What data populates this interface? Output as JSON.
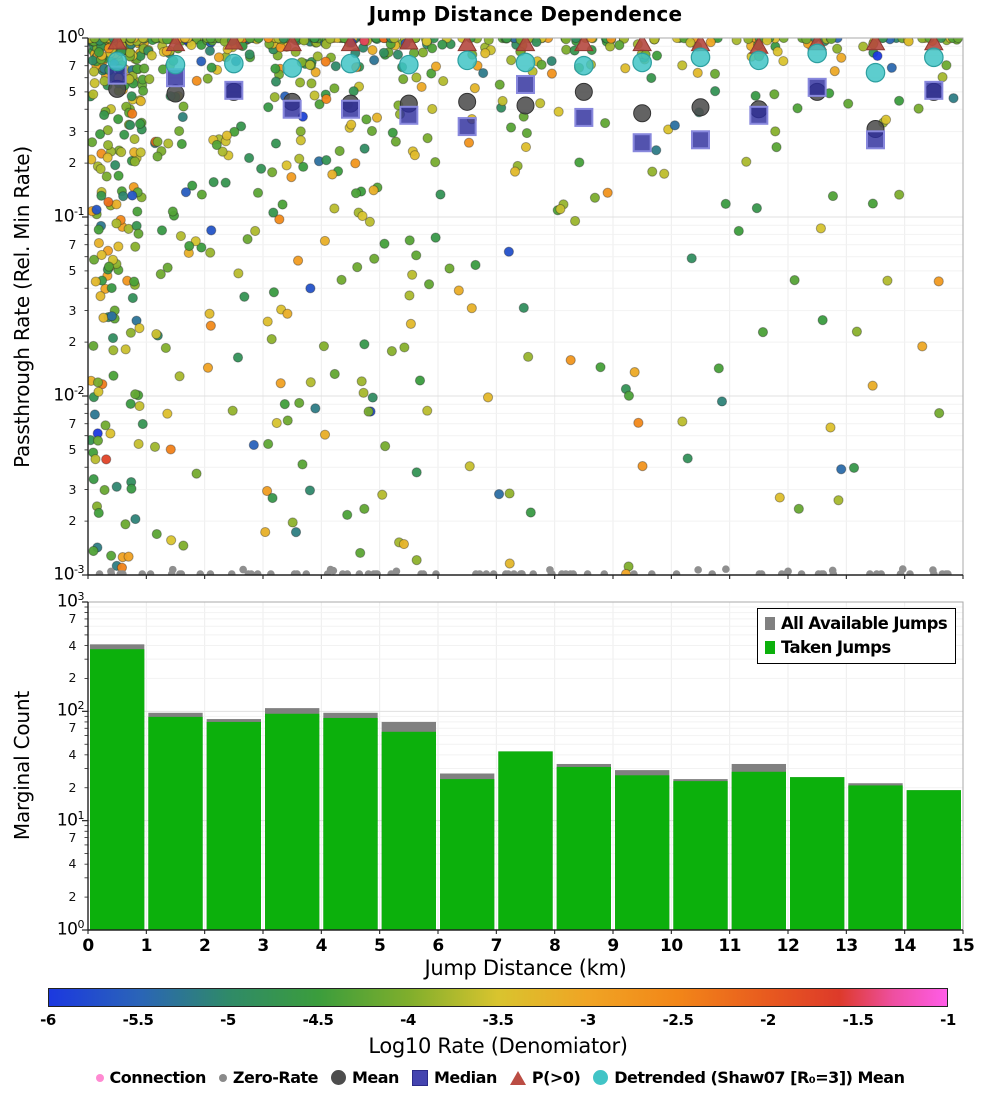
{
  "render_seed": 20230,
  "title": "Jump Distance Dependence",
  "chart_data": [
    {
      "type": "scatter",
      "title": "Jump Distance Dependence",
      "ylabel": "Passthrough Rate (Rel. Min Rate)",
      "xlim": [
        0,
        15
      ],
      "ylim_log10": [
        -3,
        0
      ],
      "grid": true,
      "ytick_decade_exponents": [
        0,
        -1,
        -2,
        -3
      ],
      "ytick_minor_labels": [
        7,
        5,
        3,
        2
      ],
      "bin_centers_km": [
        0.5,
        1.5,
        2.5,
        3.5,
        4.5,
        5.5,
        6.5,
        7.5,
        8.5,
        9.5,
        10.5,
        11.5,
        12.5,
        13.5,
        14.5
      ],
      "series": [
        {
          "name": "Mean",
          "marker": "circle",
          "color": "#4d4d4d",
          "values": [
            0.52,
            0.49,
            0.5,
            0.44,
            0.43,
            0.43,
            0.44,
            0.42,
            0.5,
            0.38,
            0.41,
            0.4,
            0.5,
            0.31,
            0.5
          ]
        },
        {
          "name": "Median",
          "marker": "square",
          "color": "#2d2d9c",
          "values": [
            0.62,
            0.6,
            0.51,
            0.4,
            0.4,
            0.37,
            0.32,
            0.55,
            0.36,
            0.26,
            0.27,
            0.37,
            0.53,
            0.27,
            0.51
          ]
        },
        {
          "name": "P(>0)",
          "marker": "triangle",
          "color": "#b5483f",
          "values": [
            0.95,
            0.93,
            0.95,
            0.93,
            0.93,
            0.95,
            0.93,
            0.93,
            0.93,
            0.93,
            0.93,
            0.9,
            0.94,
            0.94,
            0.94
          ]
        },
        {
          "name": "Detrended (Shaw07 [R₀=3]) Mean",
          "marker": "circle",
          "color": "#41c4c6",
          "values": [
            0.74,
            0.71,
            0.72,
            0.68,
            0.72,
            0.71,
            0.75,
            0.73,
            0.7,
            0.73,
            0.78,
            0.75,
            0.82,
            0.64,
            0.78
          ]
        }
      ],
      "background_scatter": {
        "note": "individual taken-jump rate points, colored by Log10 Rate (Denomiator); reproduced statistically",
        "counts_per_bin": [
          370,
          89,
          80,
          95,
          87,
          65,
          24,
          43,
          31,
          26,
          23,
          28,
          25,
          21,
          19
        ],
        "y_exponent": 5,
        "color_value_mean": -4.05,
        "color_value_sd": 0.72,
        "color_value_range": [
          -6,
          -1
        ],
        "point_radius": 4.6
      },
      "zero_rate": {
        "count": 85,
        "y_log10": -3,
        "color": "#8f8f8f",
        "radius": 3.8
      }
    },
    {
      "type": "bar",
      "ylabel": "Marginal Count",
      "xlabel": "Jump Distance (km)",
      "xlim": [
        0,
        15
      ],
      "ylim_log10": [
        0,
        3
      ],
      "grid": true,
      "ytick_decade_exponents": [
        3,
        2,
        1,
        0
      ],
      "ytick_minor_labels": [
        7,
        4,
        2
      ],
      "xticks": [
        0,
        1,
        2,
        3,
        4,
        5,
        6,
        7,
        8,
        9,
        10,
        11,
        12,
        13,
        14,
        15
      ],
      "bin_edges_km": [
        0,
        1,
        2,
        3,
        4,
        5,
        6,
        7,
        8,
        9,
        10,
        11,
        12,
        13,
        14,
        15
      ],
      "series": [
        {
          "name": "All Available Jumps",
          "color": "#808080",
          "values": [
            410,
            97,
            85,
            107,
            97,
            80,
            27,
            43,
            33,
            29,
            24,
            33,
            25,
            22,
            19
          ]
        },
        {
          "name": "Taken Jumps",
          "color": "#0cb00c",
          "values": [
            370,
            89,
            80,
            95,
            87,
            65,
            24,
            43,
            31,
            26,
            23,
            28,
            25,
            21,
            19
          ]
        }
      ],
      "legend_position": "upper right"
    },
    {
      "type": "colorbar",
      "label": "Log10 Rate (Denomiator)",
      "range": [
        -6,
        -1
      ],
      "ticks": [
        "-6",
        "-5.5",
        "-5",
        "-4.5",
        "-4",
        "-3.5",
        "-3",
        "-2.5",
        "-2",
        "-1.5",
        "-1"
      ],
      "stops": [
        [
          0.0,
          "#1b38e0"
        ],
        [
          0.1,
          "#2a64b8"
        ],
        [
          0.2,
          "#2f8a68"
        ],
        [
          0.3,
          "#3b9d3c"
        ],
        [
          0.4,
          "#7fae2c"
        ],
        [
          0.5,
          "#d9c42e"
        ],
        [
          0.6,
          "#f0a424"
        ],
        [
          0.7,
          "#f28618"
        ],
        [
          0.8,
          "#e85a1f"
        ],
        [
          0.88,
          "#dd3a2a"
        ],
        [
          0.94,
          "#ee4fa0"
        ],
        [
          1.0,
          "#ff5ce8"
        ]
      ]
    }
  ],
  "panel_legend": {
    "items": [
      {
        "label": "All Available Jumps",
        "color": "#808080"
      },
      {
        "label": "Taken Jumps",
        "color": "#0cb00c"
      }
    ]
  },
  "figure_legend": {
    "items": [
      {
        "label": "Connection",
        "marker": "small-dot",
        "color": "#ff8ad2"
      },
      {
        "label": "Zero-Rate",
        "marker": "small-dot",
        "color": "#8a8a8a"
      },
      {
        "label": "Mean",
        "marker": "circle",
        "color": "#4d4d4d"
      },
      {
        "label": "Median",
        "marker": "square",
        "color": "#4444b0"
      },
      {
        "label": "P(>0)",
        "marker": "triangle",
        "color": "#bb4d44"
      },
      {
        "label": "Detrended (Shaw07 [R₀=3]) Mean",
        "marker": "circle",
        "color": "#41c4c6"
      }
    ]
  }
}
